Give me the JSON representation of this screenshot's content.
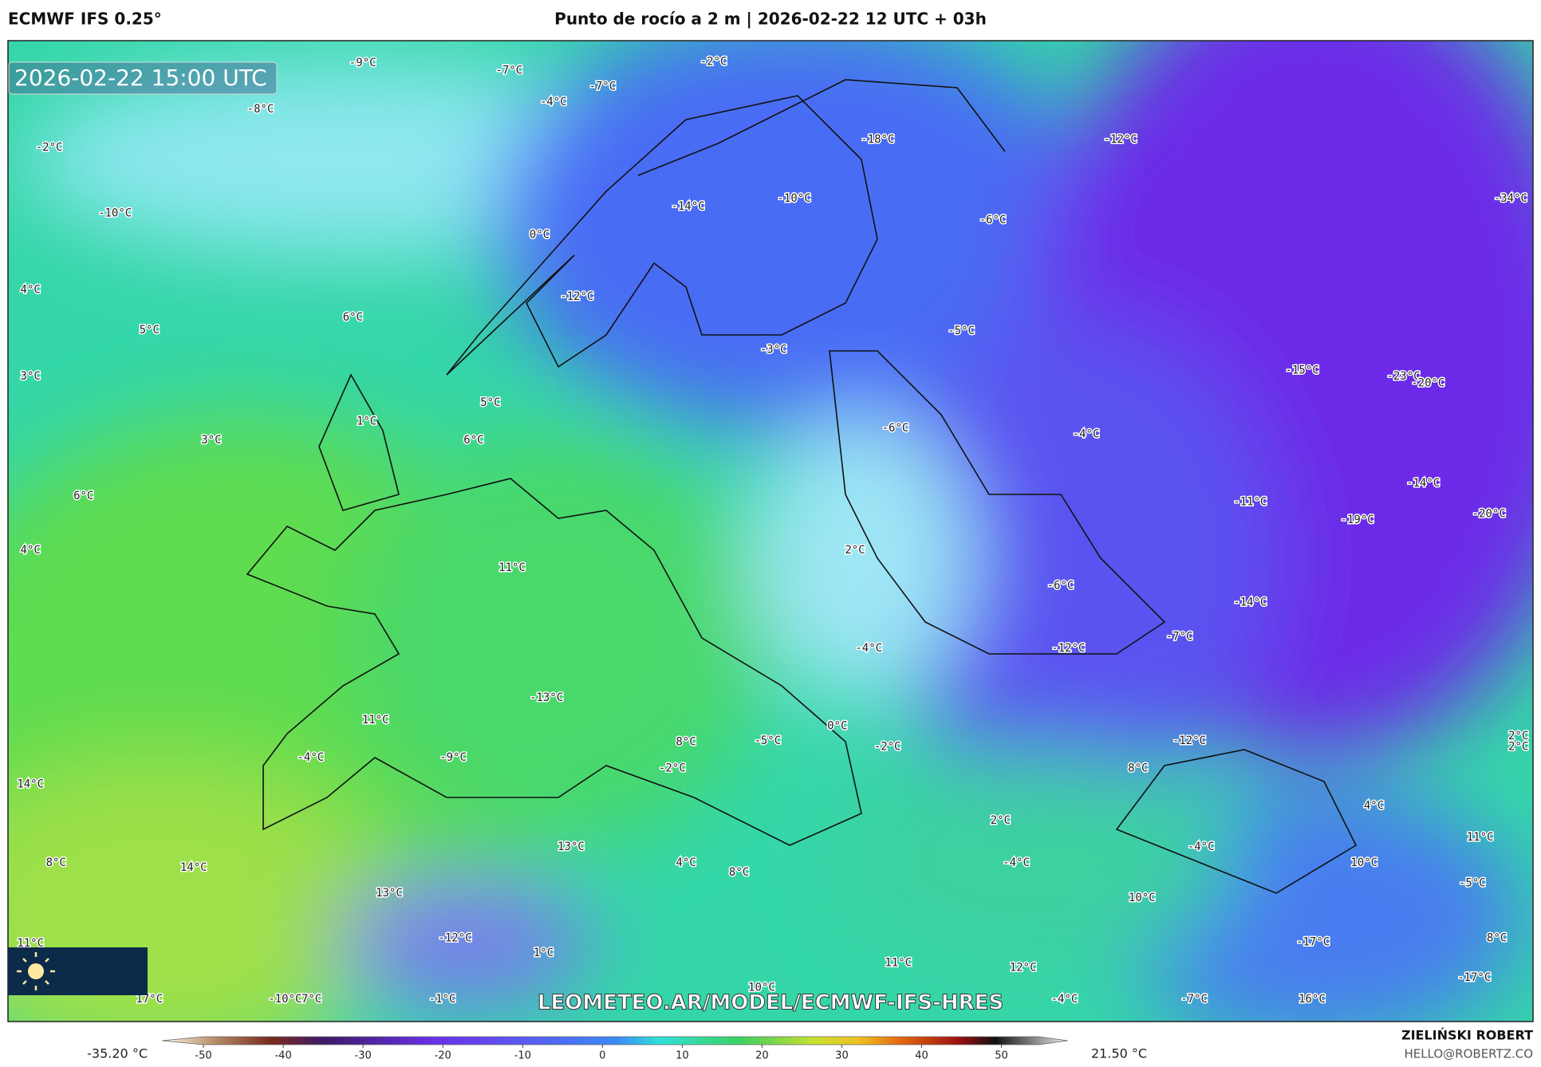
{
  "header": {
    "model": "ECMWF IFS 0.25°",
    "title": "Punto de rocío a 2 m | 2026-02-22 12 UTC + 03h"
  },
  "map": {
    "timestamp": "2026-02-22 15:00 UTC",
    "watermark": "LEOMETEO.AR/MODEL/ECMWF-IFS-HRES",
    "labels": [
      "-9°C",
      "-7°C",
      "-2°C",
      "-4°C",
      "-7°C",
      "-8°C",
      "-2°C",
      "-10°C",
      "-18°C",
      "-12°C",
      "-14°C",
      "-10°C",
      "-6°C",
      "-34°C",
      "0°C",
      "4°C",
      "6°C",
      "5°C",
      "-12°C",
      "-5°C",
      "-3°C",
      "3°C",
      "-15°C",
      "-23°C",
      "-20°C",
      "1°C",
      "5°C",
      "-6°C",
      "-4°C",
      "3°C",
      "6°C",
      "6°C",
      "-14°C",
      "-11°C",
      "-19°C",
      "-20°C",
      "4°C",
      "2°C",
      "11°C",
      "-6°C",
      "-14°C",
      "-7°C",
      "-4°C",
      "-12°C",
      "-13°C",
      "11°C",
      "0°C",
      "-12°C",
      "2°C",
      "2°C",
      "8°C",
      "-5°C",
      "-2°C",
      "-4°C",
      "-9°C",
      "-2°C",
      "8°C",
      "14°C",
      "4°C",
      "2°C",
      "11°C",
      "13°C",
      "-4°C",
      "8°C",
      "-4°C",
      "4°C",
      "10°C",
      "14°C",
      "8°C",
      "-5°C",
      "13°C",
      "10°C",
      "-12°C",
      "-17°C",
      "8°C",
      "11°C",
      "1°C",
      "11°C",
      "12°C",
      "-17°C",
      "10°C",
      "17°C",
      "-10°C",
      "7°C",
      "-1°C",
      "-4°C",
      "-7°C",
      "16°C"
    ]
  },
  "colorbar": {
    "min_label": "-35.20 °C",
    "max_label": "21.50 °C",
    "ticks": [
      -50,
      -40,
      -30,
      -20,
      -10,
      0,
      10,
      20,
      30,
      40,
      50
    ]
  },
  "credit": {
    "name": "ZIELIŃSKI ROBERT",
    "email": "HELLO@ROBERTZ.CO"
  }
}
